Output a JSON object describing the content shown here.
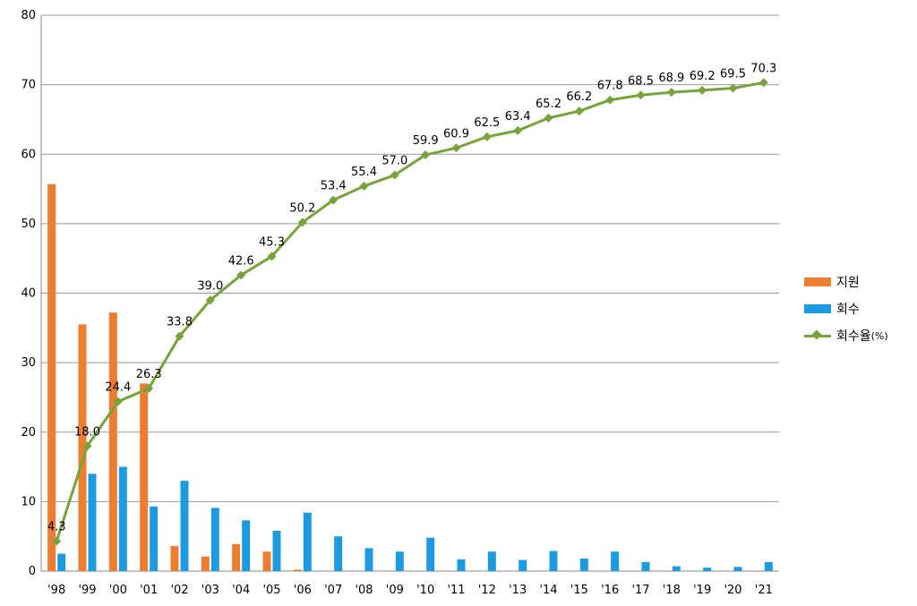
{
  "chart_data": {
    "type": "bar+line",
    "categories": [
      "'98",
      "'99",
      "'00",
      "'01",
      "'02",
      "'03",
      "'04",
      "'05",
      "'06",
      "'07",
      "'08",
      "'09",
      "'10",
      "'11",
      "'12",
      "'13",
      "'14",
      "'15",
      "'16",
      "'17",
      "'18",
      "'19",
      "'20",
      "'21"
    ],
    "series": [
      {
        "name": "지원",
        "type": "bar",
        "color": "#ed7d31",
        "values": [
          55.7,
          35.5,
          37.2,
          27.0,
          3.6,
          2.1,
          3.9,
          2.8,
          0.2,
          0,
          0,
          0,
          0,
          0,
          0,
          0,
          0,
          0,
          0,
          0,
          0,
          0,
          0,
          0
        ]
      },
      {
        "name": "회수",
        "type": "bar",
        "color": "#1e9be0",
        "values": [
          2.5,
          14.0,
          15.0,
          9.3,
          13.0,
          9.1,
          7.3,
          5.8,
          8.4,
          5.0,
          3.3,
          2.8,
          4.8,
          1.7,
          2.8,
          1.6,
          2.9,
          1.8,
          2.8,
          1.3,
          0.7,
          0.5,
          0.6,
          1.3
        ]
      },
      {
        "name": "회수율",
        "name_suffix": "(%)",
        "type": "line",
        "color": "#77a33c",
        "values": [
          4.3,
          18.0,
          24.4,
          26.3,
          33.8,
          39.0,
          42.6,
          45.3,
          50.2,
          53.4,
          55.4,
          57.0,
          59.9,
          60.9,
          62.5,
          63.4,
          65.2,
          66.2,
          67.8,
          68.5,
          68.9,
          69.2,
          69.5,
          70.3
        ],
        "labels": [
          "4.3",
          "18.0",
          "24.4",
          "26.3",
          "33.8",
          "39.0",
          "42.6",
          "45.3",
          "50.2",
          "53.4",
          "55.4",
          "57.0",
          "59.9",
          "60.9",
          "62.5",
          "63.4",
          "65.2",
          "66.2",
          "67.8",
          "68.5",
          "68.9",
          "69.2",
          "69.5",
          "70.3"
        ]
      }
    ],
    "yticks": [
      "0",
      "10",
      "20",
      "30",
      "40",
      "50",
      "60",
      "70",
      "80"
    ],
    "ylim": [
      0,
      80
    ],
    "grid": true,
    "legend": "right"
  }
}
